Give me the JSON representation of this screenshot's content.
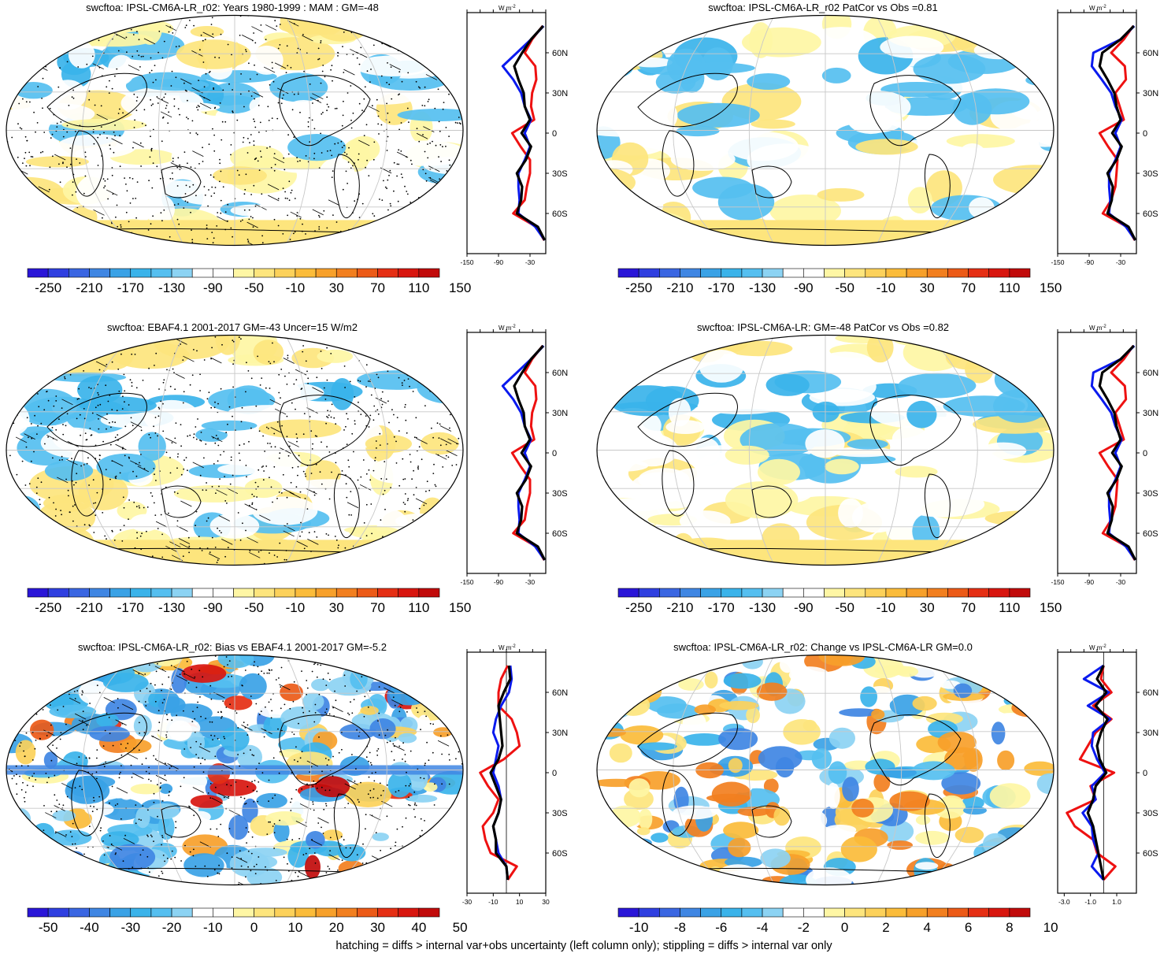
{
  "footnote": "hatching = diffs > internal var+obs uncertainty (left column only); stippling = diffs > internal var only",
  "colors": {
    "scale": [
      "#2a16d8",
      "#2f3fe0",
      "#3a66e2",
      "#3f86e3",
      "#3aa2e6",
      "#3ab3ea",
      "#55bff0",
      "#8cd3f3",
      "#ffffff",
      "#ffffff",
      "#fef6a4",
      "#fde57d",
      "#fcd15a",
      "#fbbc3a",
      "#f7a02a",
      "#f27f1f",
      "#ec5a17",
      "#e52f14",
      "#d8160f",
      "#c10b0b"
    ],
    "model": "#000000",
    "obs": "#0a1aee",
    "other": "#ee1111"
  },
  "profile_axis": {
    "unit": "W m",
    "unit_sup": "-2",
    "lat_labels": [
      "60N",
      "30N",
      "0",
      "30S",
      "60S"
    ]
  },
  "chart_data": [
    {
      "type": "heatmap",
      "title": "swcftoa: IPSL-CM6A-LR_r02: Years 1980-1999 : MAM : GM=-48",
      "colorbar_labels": [
        "-250",
        "-210",
        "-170",
        "-130",
        "-90",
        "-50",
        "-10",
        "30",
        "70",
        "110",
        "150"
      ],
      "colorbar_range": [
        -270,
        170
      ],
      "overlay": "hatching+stippling",
      "profile": {
        "xlim": [
          -150,
          0
        ],
        "xticks": [
          "-150",
          "-90",
          "-30"
        ],
        "lat": [
          80,
          70,
          60,
          50,
          40,
          30,
          20,
          10,
          0,
          -10,
          -20,
          -30,
          -40,
          -50,
          -60,
          -70,
          -80
        ],
        "series": [
          {
            "role": "model",
            "values": [
              -5,
              -28,
              -45,
              -60,
              -52,
              -42,
              -40,
              -30,
              -46,
              -28,
              -38,
              -55,
              -45,
              -47,
              -55,
              -15,
              -2
            ]
          },
          {
            "role": "obs",
            "values": [
              -4,
              -28,
              -55,
              -82,
              -62,
              -47,
              -40,
              -28,
              -40,
              -30,
              -40,
              -52,
              -52,
              -50,
              -52,
              -20,
              -2
            ]
          },
          {
            "role": "other",
            "values": [
              -6,
              -26,
              -40,
              -20,
              -18,
              -26,
              -28,
              -22,
              -64,
              -48,
              -30,
              -30,
              -36,
              -40,
              -62,
              -18,
              -3
            ]
          }
        ]
      }
    },
    {
      "type": "heatmap",
      "title": "swcftoa: IPSL-CM6A-LR_r02 PatCor vs Obs =0.81",
      "colorbar_labels": [
        "-250",
        "-210",
        "-170",
        "-130",
        "-90",
        "-50",
        "-10",
        "30",
        "70",
        "110",
        "150"
      ],
      "colorbar_range": [
        -270,
        170
      ],
      "overlay": "none",
      "profile": {
        "xlim": [
          -150,
          0
        ],
        "xticks": [
          "-150",
          "-90",
          "-30"
        ],
        "lat": [
          80,
          70,
          60,
          50,
          40,
          30,
          20,
          10,
          0,
          -10,
          -20,
          -30,
          -40,
          -50,
          -60,
          -70,
          -80
        ],
        "series": [
          {
            "role": "model",
            "values": [
              -5,
              -30,
              -65,
              -70,
              -55,
              -42,
              -38,
              -30,
              -46,
              -28,
              -38,
              -55,
              -45,
              -47,
              -55,
              -15,
              -2
            ]
          },
          {
            "role": "obs",
            "values": [
              -4,
              -30,
              -82,
              -85,
              -66,
              -48,
              -40,
              -28,
              -40,
              -30,
              -40,
              -52,
              -52,
              -50,
              -52,
              -20,
              -2
            ]
          },
          {
            "role": "other",
            "values": [
              -6,
              -24,
              -48,
              -22,
              -20,
              -40,
              -32,
              -24,
              -70,
              -54,
              -36,
              -38,
              -40,
              -48,
              -64,
              -18,
              -3
            ]
          }
        ]
      }
    },
    {
      "type": "heatmap",
      "title": "swcftoa: EBAF4.1 2001-2017 GM=-43 Uncer=15 W/m2",
      "colorbar_labels": [
        "-250",
        "-210",
        "-170",
        "-130",
        "-90",
        "-50",
        "-10",
        "30",
        "70",
        "110",
        "150"
      ],
      "colorbar_range": [
        -270,
        170
      ],
      "overlay": "hatching+stippling",
      "profile": {
        "xlim": [
          -150,
          0
        ],
        "xticks": [
          "-150",
          "-90",
          "-30"
        ],
        "lat": [
          80,
          70,
          60,
          50,
          40,
          30,
          20,
          10,
          0,
          -10,
          -20,
          -30,
          -40,
          -50,
          -60,
          -70,
          -80
        ],
        "series": [
          {
            "role": "model",
            "values": [
              -5,
              -28,
              -45,
              -60,
              -52,
              -42,
              -40,
              -30,
              -46,
              -28,
              -38,
              -55,
              -45,
              -47,
              -55,
              -15,
              -2
            ]
          },
          {
            "role": "obs",
            "values": [
              -4,
              -28,
              -55,
              -82,
              -62,
              -47,
              -40,
              -28,
              -40,
              -30,
              -40,
              -52,
              -52,
              -50,
              -52,
              -20,
              -2
            ]
          },
          {
            "role": "other",
            "values": [
              -6,
              -26,
              -40,
              -20,
              -18,
              -26,
              -28,
              -22,
              -64,
              -48,
              -30,
              -30,
              -36,
              -40,
              -62,
              -18,
              -3
            ]
          }
        ]
      }
    },
    {
      "type": "heatmap",
      "title": "swcftoa: IPSL-CM6A-LR: GM=-48 PatCor vs Obs =0.82",
      "colorbar_labels": [
        "-250",
        "-210",
        "-170",
        "-130",
        "-90",
        "-50",
        "-10",
        "30",
        "70",
        "110",
        "150"
      ],
      "colorbar_range": [
        -270,
        170
      ],
      "overlay": "none",
      "profile": {
        "xlim": [
          -150,
          0
        ],
        "xticks": [
          "-150",
          "-90",
          "-30"
        ],
        "lat": [
          80,
          70,
          60,
          50,
          40,
          30,
          20,
          10,
          0,
          -10,
          -20,
          -30,
          -40,
          -50,
          -60,
          -70,
          -80
        ],
        "series": [
          {
            "role": "model",
            "values": [
              -5,
              -30,
              -65,
              -70,
              -55,
              -42,
              -38,
              -30,
              -46,
              -28,
              -38,
              -55,
              -45,
              -47,
              -55,
              -15,
              -2
            ]
          },
          {
            "role": "obs",
            "values": [
              -4,
              -30,
              -82,
              -85,
              -66,
              -48,
              -40,
              -28,
              -40,
              -30,
              -40,
              -52,
              -52,
              -50,
              -52,
              -20,
              -2
            ]
          },
          {
            "role": "other",
            "values": [
              -6,
              -24,
              -48,
              -22,
              -20,
              -40,
              -32,
              -24,
              -70,
              -54,
              -36,
              -38,
              -40,
              -48,
              -64,
              -18,
              -3
            ]
          }
        ]
      }
    },
    {
      "type": "heatmap",
      "title": "swcftoa: IPSL-CM6A-LR_r02: Bias vs EBAF4.1 2001-2017 GM=-5.2",
      "colorbar_labels": [
        "-50",
        "-40",
        "-30",
        "-20",
        "-10",
        "0",
        "10",
        "20",
        "30",
        "40",
        "50"
      ],
      "colorbar_range": [
        -55,
        55
      ],
      "overlay": "hatching+stippling",
      "profile": {
        "xlim": [
          -30,
          30
        ],
        "xticks": [
          "-30",
          "-10",
          "10",
          "30"
        ],
        "lat": [
          80,
          70,
          60,
          50,
          40,
          30,
          20,
          10,
          0,
          -10,
          -20,
          -30,
          -40,
          -50,
          -60,
          -70,
          -80
        ],
        "series": [
          {
            "role": "model",
            "values": [
              2,
              3,
              -2,
              -6,
              -5,
              -4,
              -3,
              -6,
              -12,
              -8,
              -4,
              -6,
              -10,
              -8,
              -8,
              0,
              1
            ]
          },
          {
            "role": "obs",
            "values": [
              3,
              4,
              2,
              -4,
              -8,
              -10,
              -6,
              -8,
              -10,
              -6,
              -4,
              -6,
              -10,
              -8,
              -6,
              0,
              1
            ]
          },
          {
            "role": "other",
            "values": [
              1,
              -4,
              -6,
              -6,
              4,
              8,
              10,
              -2,
              -20,
              -14,
              -6,
              -10,
              -18,
              -16,
              -12,
              8,
              1
            ]
          }
        ]
      }
    },
    {
      "type": "heatmap",
      "title": "swcftoa: IPSL-CM6A-LR_r02: Change vs IPSL-CM6A-LR GM=0.0",
      "colorbar_labels": [
        "-10",
        "-8",
        "-6",
        "-4",
        "-2",
        "0",
        "2",
        "4",
        "6",
        "8",
        "10"
      ],
      "colorbar_range": [
        -11,
        11
      ],
      "overlay": "none",
      "profile": {
        "xlim": [
          -3.5,
          2.5
        ],
        "xticks": [
          "-3.0",
          "-1.0",
          "1.0"
        ],
        "lat": [
          80,
          70,
          60,
          50,
          40,
          30,
          20,
          10,
          0,
          -10,
          -20,
          -30,
          -40,
          -50,
          -60,
          -70,
          -80
        ],
        "series": [
          {
            "role": "model",
            "values": [
              0,
              -0.5,
              0.2,
              -0.6,
              0.3,
              -0.2,
              -0.5,
              -0.3,
              0.2,
              -0.6,
              -0.8,
              -1.2,
              -0.8,
              -0.6,
              -0.4,
              -0.2,
              0
            ]
          },
          {
            "role": "obs",
            "values": [
              0,
              -1.5,
              0.4,
              -1.2,
              0.5,
              -0.8,
              -0.9,
              -0.5,
              0.1,
              -0.9,
              -0.6,
              -1.6,
              -0.9,
              -0.8,
              -0.4,
              -0.9,
              0
            ]
          },
          {
            "role": "other",
            "values": [
              0,
              -0.2,
              0.6,
              -0.8,
              0.6,
              -0.6,
              -1.2,
              -1.8,
              0.8,
              -1.0,
              -0.6,
              -2.8,
              -2.2,
              -0.8,
              -0.5,
              0.9,
              0
            ]
          }
        ]
      }
    }
  ]
}
